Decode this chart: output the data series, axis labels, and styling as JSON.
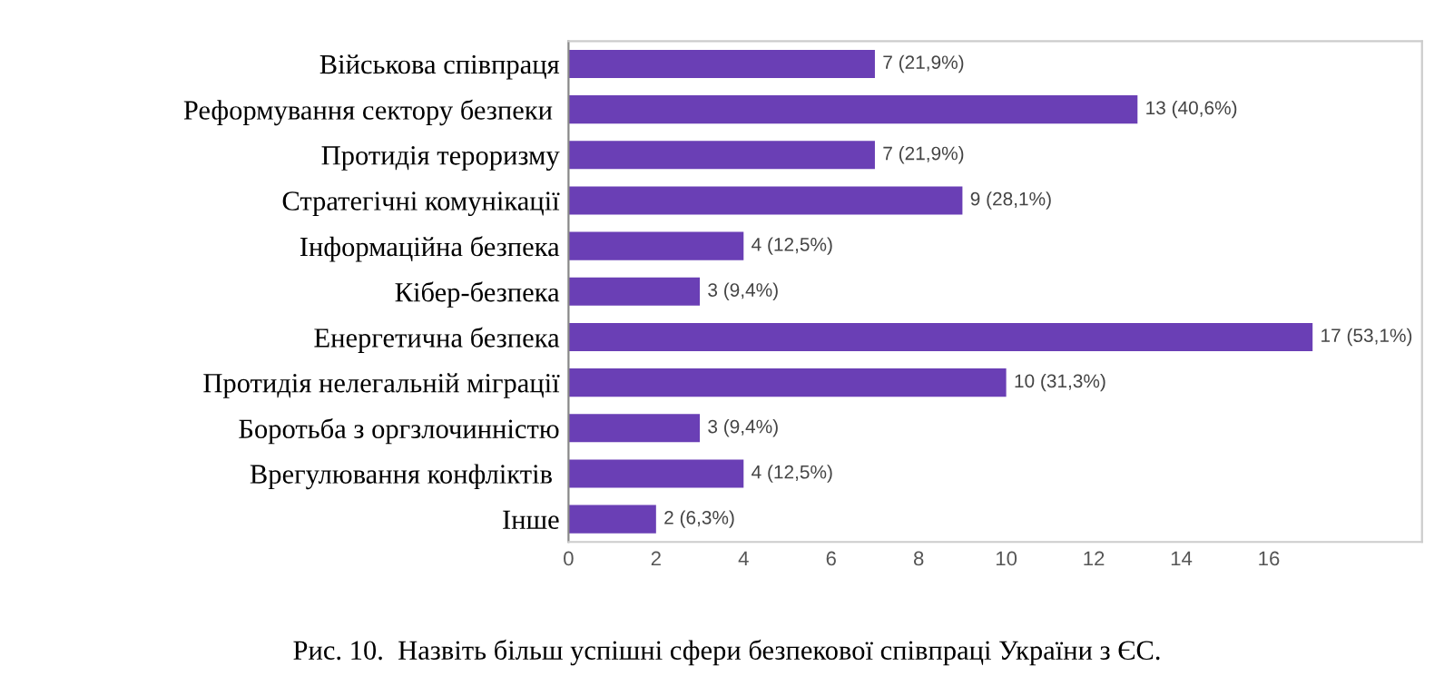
{
  "chart_data": {
    "type": "bar",
    "orientation": "horizontal",
    "title": "Рис. 10.  Назвіть більш успішні сфери безпекової співпраці України з ЄС.",
    "categories": [
      "Військова співпраця",
      "Реформування сектору безпеки ",
      "Протидія тероризму",
      "Стратегічні комунікації",
      "Інформаційна безпека",
      "Кібер-безпека",
      "Енергетична безпека",
      "Протидія нелегальній міграції",
      "Боротьба з оргзлочинністю",
      "Врегулювання конфліктів ",
      "Інше"
    ],
    "values": [
      7,
      13,
      7,
      9,
      4,
      3,
      17,
      10,
      3,
      4,
      2
    ],
    "value_labels": [
      "7 (21,9%)",
      "13 (40,6%)",
      "7 (21,9%)",
      "9 (28,1%)",
      "4 (12,5%)",
      "3 (9,4%)",
      "17 (53,1%)",
      "10 (31,3%)",
      "3 (9,4%)",
      "4 (12,5%)",
      "2 (6,3%)"
    ],
    "color": "#6a3fb5",
    "xlim": [
      0,
      19.5
    ],
    "xticks": [
      0,
      2,
      4,
      6,
      8,
      10,
      12,
      14,
      16
    ],
    "grid": false,
    "legend": false
  }
}
